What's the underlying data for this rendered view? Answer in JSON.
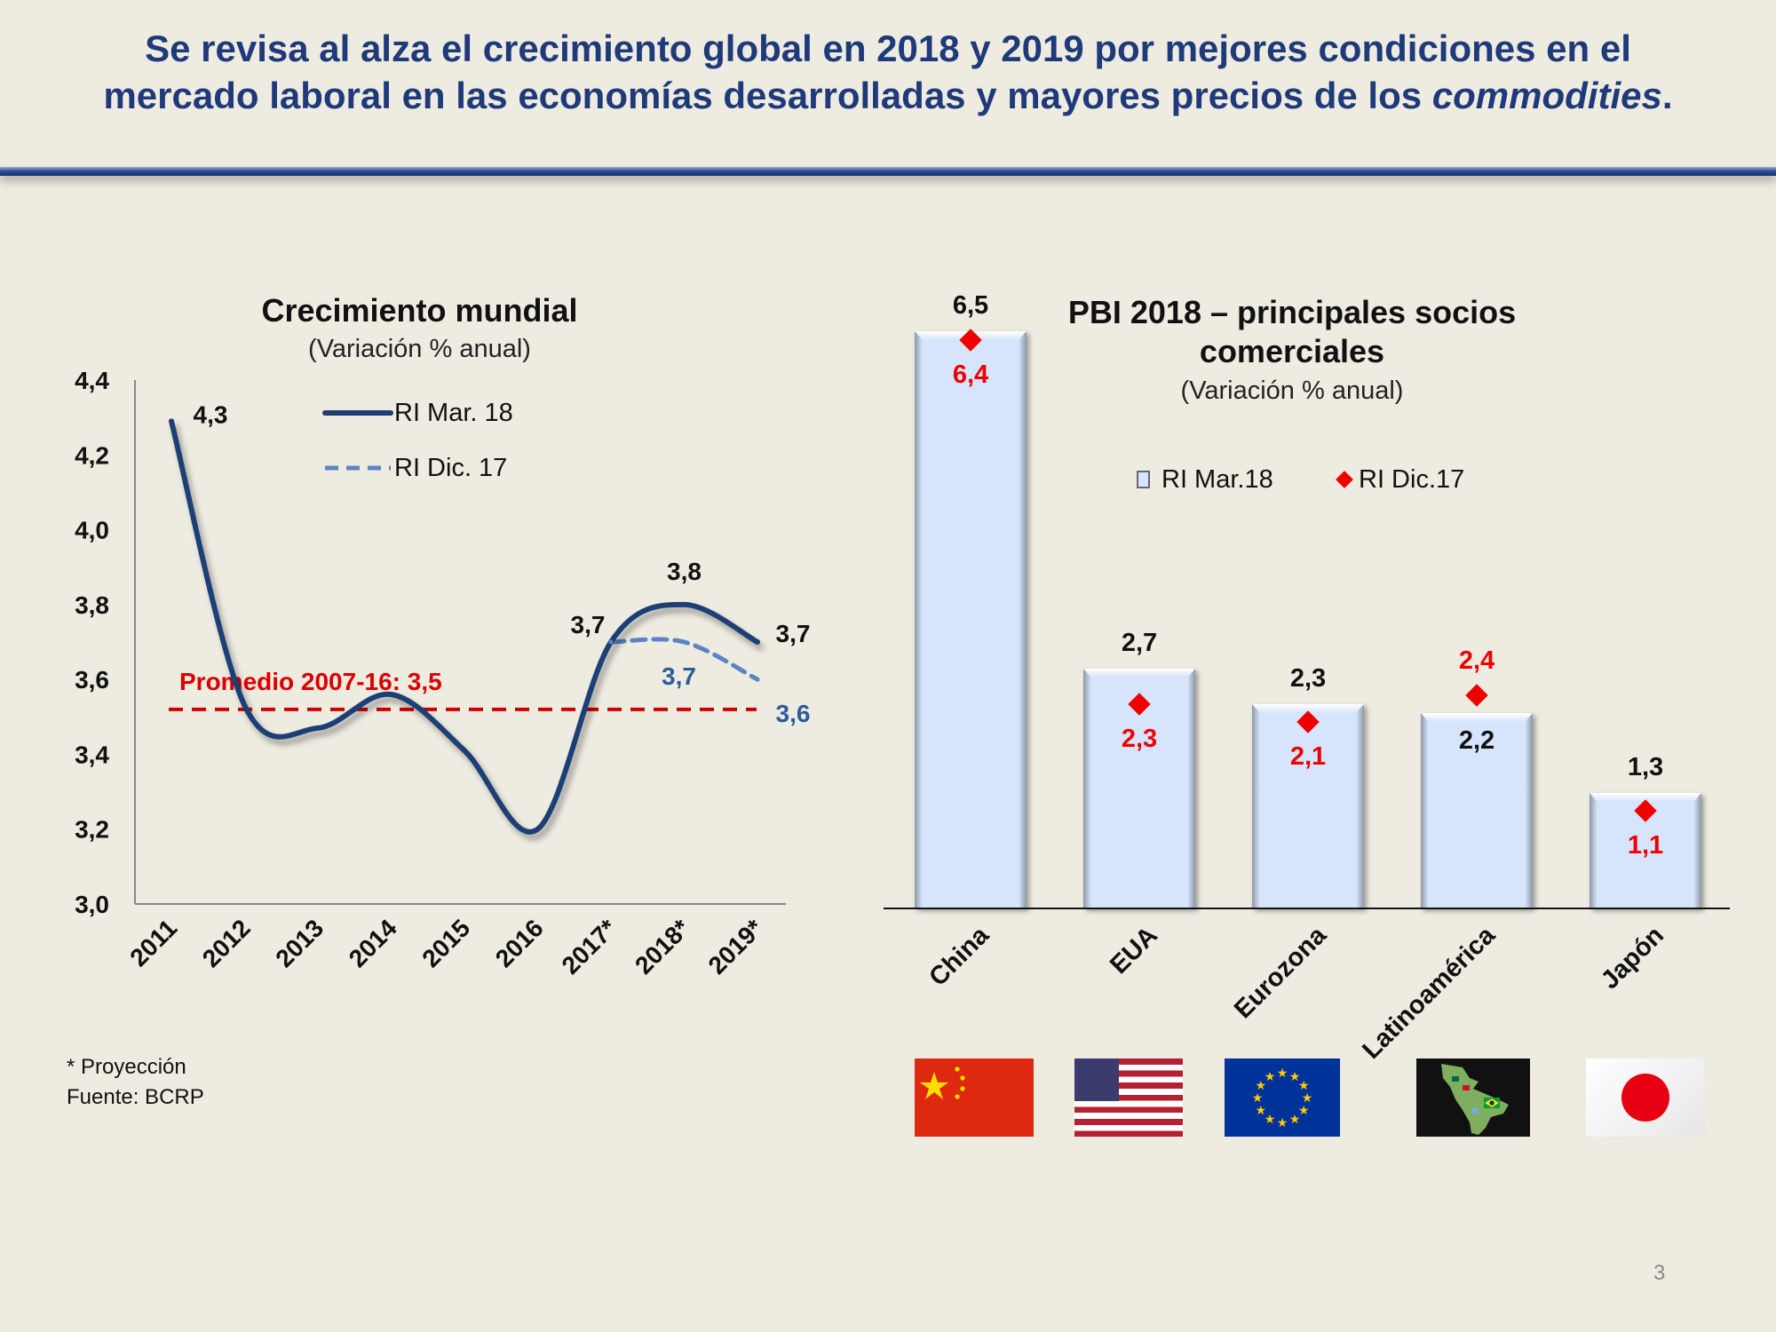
{
  "headline": {
    "line1": "Se revisa al alza el crecimiento global en 2018 y 2019 por mejores condiciones en el",
    "line2_prefix": "mercado laboral en las economías desarrolladas y mayores precios de los ",
    "line2_italic": "commodities",
    "line2_suffix": "."
  },
  "colors": {
    "headline": "#1f3a7a",
    "series_mar18": "#1f3f74",
    "series_dic17": "#5b84c4",
    "average": "#cc0000",
    "bar_fill": "#d6e5fb",
    "marker": "#ee0000"
  },
  "chart_left": {
    "title": "Crecimiento mundial",
    "subtitle": "(Variación % anual)",
    "legend": [
      "RI  Mar. 18",
      "RI  Dic. 17"
    ],
    "average_label": "Promedio 2007-16: 3,5"
  },
  "chart_right": {
    "title_line1": "PBI 2018 – principales socios",
    "title_line2": "comerciales",
    "subtitle": "(Variación % anual)",
    "legend": [
      "RI Mar.18",
      "RI Dic.17"
    ]
  },
  "footnote": {
    "projection": "* Proyección",
    "source": "Fuente: BCRP"
  },
  "page_number": "3",
  "flags": [
    "china-flag",
    "usa-flag",
    "eu-flag",
    "latam-flag",
    "japan-flag"
  ],
  "chart_data": [
    {
      "type": "line",
      "title": "Crecimiento mundial",
      "subtitle": "(Variación % anual)",
      "x": [
        "2011",
        "2012",
        "2013",
        "2014",
        "2015",
        "2016",
        "2017*",
        "2018*",
        "2019*"
      ],
      "ylim": [
        3.0,
        4.4
      ],
      "yticks": [
        "3,0",
        "3,2",
        "3,4",
        "3,6",
        "3,8",
        "4,0",
        "4,2",
        "4,4"
      ],
      "series": [
        {
          "name": "RI  Mar. 18",
          "style": "solid",
          "values": [
            4.29,
            3.53,
            3.47,
            3.56,
            3.41,
            3.2,
            3.7,
            3.8,
            3.7
          ]
        },
        {
          "name": "RI  Dic. 17",
          "style": "dashed",
          "values": [
            null,
            null,
            null,
            null,
            null,
            null,
            3.7,
            3.7,
            3.6
          ]
        }
      ],
      "reference_line": {
        "label": "Promedio 2007-16: 3,5",
        "value": 3.52
      },
      "data_labels": [
        {
          "series": "RI  Mar. 18",
          "x": "2011",
          "text": "4,3",
          "value": 4.29
        },
        {
          "series": "RI  Mar. 18",
          "x": "2017*",
          "text": "3,7",
          "value": 3.7
        },
        {
          "series": "RI  Mar. 18",
          "x": "2018*",
          "text": "3,8",
          "value": 3.8
        },
        {
          "series": "RI  Mar. 18",
          "x": "2019*",
          "text": "3,7",
          "value": 3.7
        },
        {
          "series": "RI  Dic. 17",
          "x": "2018*",
          "text": "3,7",
          "value": 3.7
        },
        {
          "series": "RI  Dic. 17",
          "x": "2019*",
          "text": "3,6",
          "value": 3.6
        }
      ]
    },
    {
      "type": "bar",
      "title": "PBI 2018 – principales socios comerciales",
      "subtitle": "(Variación % anual)",
      "categories": [
        "China",
        "EUA",
        "Eurozona",
        "Latinoamérica",
        "Japón"
      ],
      "series": [
        {
          "name": "RI Mar.18",
          "kind": "bar",
          "values": [
            6.5,
            2.7,
            2.3,
            2.2,
            1.3
          ],
          "labels": [
            "6,5",
            "2,7",
            "2,3",
            "2,2",
            "1,3"
          ]
        },
        {
          "name": "RI Dic.17",
          "kind": "marker",
          "values": [
            6.4,
            2.3,
            2.1,
            2.4,
            1.1
          ],
          "labels": [
            "6,4",
            "2,3",
            "2,1",
            "2,4",
            "1,1"
          ]
        }
      ],
      "ylim": [
        0,
        7.2
      ]
    }
  ]
}
